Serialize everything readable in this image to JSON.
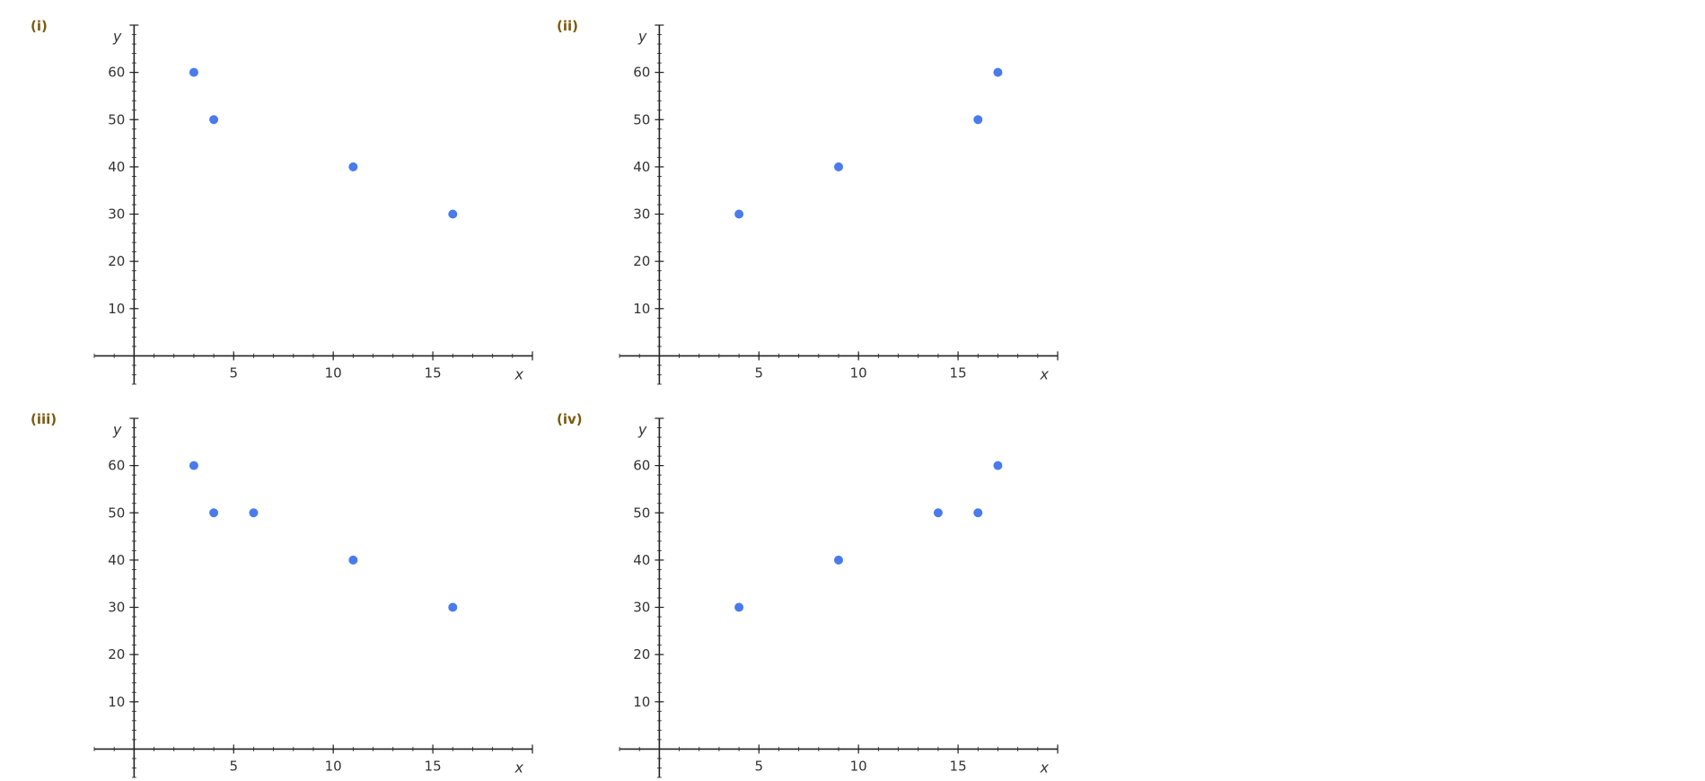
{
  "chart_data": [
    {
      "type": "scatter",
      "panel_label": "(i)",
      "xlabel": "x",
      "ylabel": "y",
      "xlim": [
        -2,
        20
      ],
      "ylim": [
        -6,
        70
      ],
      "x_ticks": [
        5,
        10,
        15
      ],
      "y_ticks": [
        10,
        20,
        30,
        40,
        50,
        60
      ],
      "color": "#4a7bec",
      "points": [
        {
          "x": 3,
          "y": 60
        },
        {
          "x": 4,
          "y": 50
        },
        {
          "x": 11,
          "y": 40
        },
        {
          "x": 16,
          "y": 30
        }
      ]
    },
    {
      "type": "scatter",
      "panel_label": "(ii)",
      "xlabel": "x",
      "ylabel": "y",
      "xlim": [
        -2,
        20
      ],
      "ylim": [
        -6,
        70
      ],
      "x_ticks": [
        5,
        10,
        15
      ],
      "y_ticks": [
        10,
        20,
        30,
        40,
        50,
        60
      ],
      "color": "#4a7bec",
      "points": [
        {
          "x": 4,
          "y": 30
        },
        {
          "x": 9,
          "y": 40
        },
        {
          "x": 16,
          "y": 50
        },
        {
          "x": 17,
          "y": 60
        }
      ]
    },
    {
      "type": "scatter",
      "panel_label": "(iii)",
      "xlabel": "x",
      "ylabel": "y",
      "xlim": [
        -2,
        20
      ],
      "ylim": [
        -6,
        70
      ],
      "x_ticks": [
        5,
        10,
        15
      ],
      "y_ticks": [
        10,
        20,
        30,
        40,
        50,
        60
      ],
      "color": "#4a7bec",
      "points": [
        {
          "x": 3,
          "y": 60
        },
        {
          "x": 4,
          "y": 50
        },
        {
          "x": 6,
          "y": 50
        },
        {
          "x": 11,
          "y": 40
        },
        {
          "x": 16,
          "y": 30
        }
      ]
    },
    {
      "type": "scatter",
      "panel_label": "(iv)",
      "xlabel": "x",
      "ylabel": "y",
      "xlim": [
        -2,
        20
      ],
      "ylim": [
        -6,
        70
      ],
      "x_ticks": [
        5,
        10,
        15
      ],
      "y_ticks": [
        10,
        20,
        30,
        40,
        50,
        60
      ],
      "color": "#4a7bec",
      "points": [
        {
          "x": 4,
          "y": 30
        },
        {
          "x": 9,
          "y": 40
        },
        {
          "x": 14,
          "y": 50
        },
        {
          "x": 16,
          "y": 50
        },
        {
          "x": 17,
          "y": 60
        }
      ]
    }
  ]
}
